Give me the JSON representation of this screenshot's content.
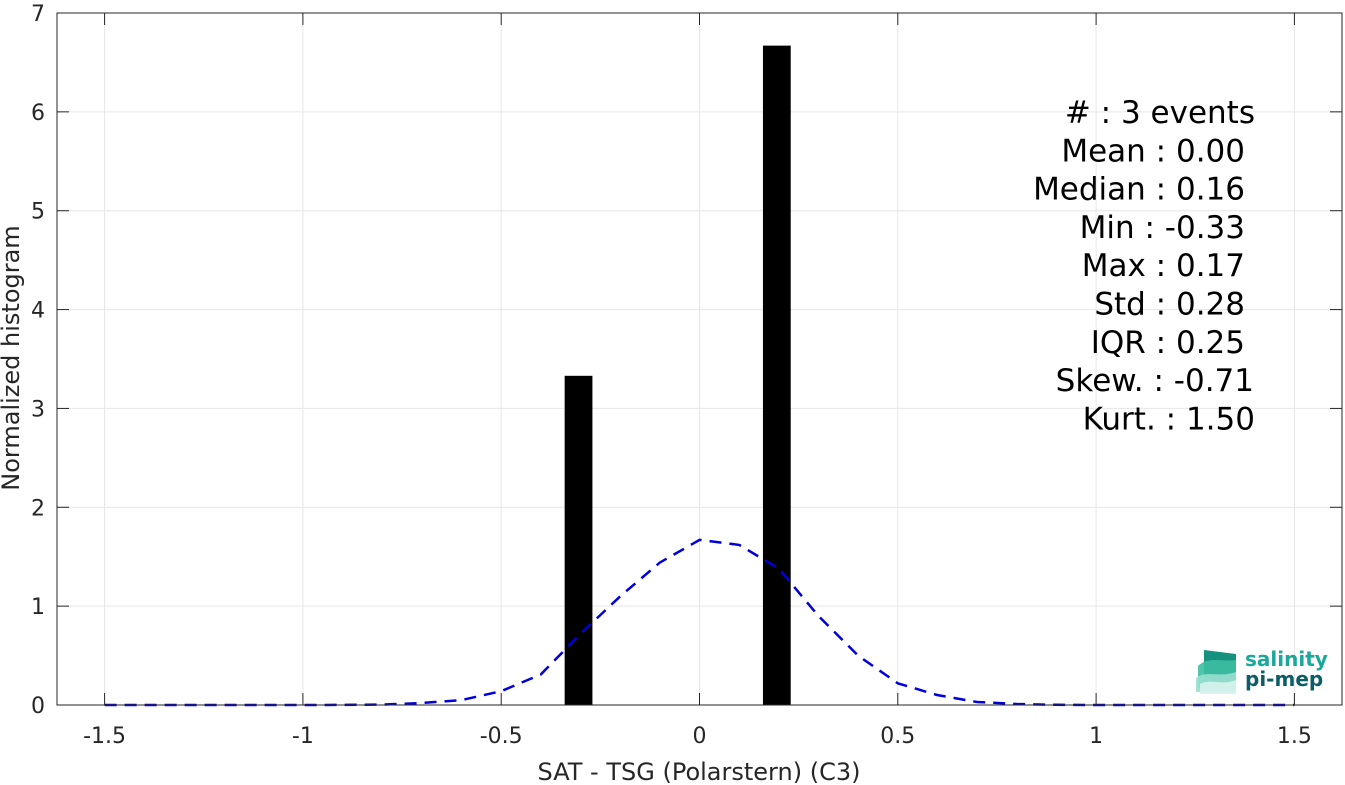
{
  "chart_data": {
    "type": "bar",
    "xlabel": "SAT - TSG (Polarstern) (C3)",
    "ylabel": "Normalized histogram",
    "xlim": [
      -1.62,
      1.62
    ],
    "ylim": [
      0,
      7
    ],
    "xticks": [
      -1.5,
      -1,
      -0.5,
      0,
      0.5,
      1,
      1.5
    ],
    "xtick_labels": [
      "-1.5",
      "-1",
      "-0.5",
      "0",
      "0.5",
      "1",
      "1.5"
    ],
    "yticks": [
      0,
      1,
      2,
      3,
      4,
      5,
      6,
      7
    ],
    "ytick_labels": [
      "0",
      "1",
      "2",
      "3",
      "4",
      "5",
      "6",
      "7"
    ],
    "grid": true,
    "bars": {
      "color": "#000000",
      "width": 0.07,
      "x": [
        -0.305,
        0.195
      ],
      "values": [
        3.33,
        6.67
      ]
    },
    "fit_curve": {
      "style": "dashed",
      "color": "#0000dd",
      "x": [
        -1.5,
        -1.4,
        -1.3,
        -1.2,
        -1.1,
        -1.0,
        -0.9,
        -0.8,
        -0.7,
        -0.6,
        -0.5,
        -0.4,
        -0.3,
        -0.2,
        -0.1,
        0.0,
        0.1,
        0.2,
        0.3,
        0.4,
        0.5,
        0.6,
        0.7,
        0.8,
        0.9,
        1.0,
        1.1,
        1.2,
        1.3,
        1.4,
        1.5
      ],
      "y": [
        0,
        0,
        0,
        0,
        0,
        0,
        0.001,
        0.004,
        0.02,
        0.05,
        0.14,
        0.31,
        0.72,
        1.1,
        1.44,
        1.67,
        1.62,
        1.38,
        0.9,
        0.5,
        0.22,
        0.1,
        0.03,
        0.01,
        0.002,
        0,
        0,
        0,
        0,
        0,
        0
      ]
    },
    "stats_lines": [
      "#  : 3 events",
      "Mean : 0.00",
      "Median : 0.16",
      "Min : -0.33",
      "Max : 0.17",
      "Std : 0.28",
      "IQR : 0.25",
      "Skew. : -0.71",
      "Kurt. : 1.50"
    ]
  },
  "logo": {
    "line1": "salinity",
    "line2": "pi-mep",
    "color": "#1aa89a",
    "dark_color": "#0d5d66"
  }
}
